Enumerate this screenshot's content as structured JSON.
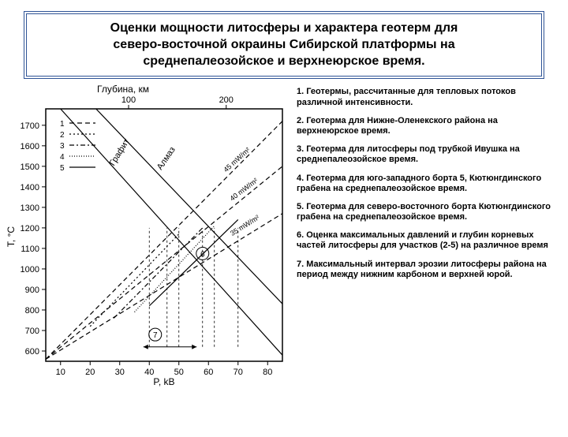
{
  "title": {
    "line1": "Оценки мощности литосферы и характера геотерм для",
    "line2": "северо-восточной окраины Сибирской платформы на",
    "line3": "среднепалеозойское и верхнеюрское время."
  },
  "descriptions": [
    "1. Геотермы, рассчитанные для тепловых потоков   различной    интенсивности.",
    "2. Геотерма для Нижне-Оленекского района на верхнеюрское время.",
    "3. Геотерма для литосферы под трубкой Ивушка на среднепалеозойское время.",
    "4. Геотерма для юго-западного борта 5, Кютюнгдинского грабена на среднепалеозойское время.",
    "5. Геотерма для северо-восточного борта Кютюнгдинского грабена на среднепалеозойское время.",
    "6. Оценка максимальных давлений и глубин корневых частей литосферы для участков (2-5) на различное время",
    "7. Максимальный интервал эрозии литосферы района на период между нижним карбоном и верхней юрой."
  ],
  "chart": {
    "type": "line",
    "top_axis_label": "Глубина, км",
    "y_axis_label": "T, °C",
    "x_axis_label": "P, kB",
    "xlim": [
      5,
      85
    ],
    "ylim": [
      550,
      1780
    ],
    "x_ticks": [
      10,
      20,
      30,
      40,
      50,
      60,
      70,
      80
    ],
    "y_ticks": [
      600,
      700,
      800,
      900,
      1000,
      1100,
      1200,
      1300,
      1400,
      1500,
      1600,
      1700
    ],
    "top_ticks": [
      100,
      200
    ],
    "background_color": "#ffffff",
    "axis_color": "#000000",
    "tick_fontsize": 11,
    "label_fontsize": 12,
    "legend_items": [
      "1",
      "2",
      "3",
      "4",
      "5"
    ],
    "legend_styles": [
      "dashed",
      "dotted",
      "dashdot",
      "dotted2",
      "solid"
    ],
    "graphite_line": {
      "p": [
        10,
        85
      ],
      "t": [
        1780,
        580
      ]
    },
    "diamond_line": {
      "p": [
        22,
        85
      ],
      "t": [
        1780,
        830
      ]
    },
    "graphite_label": "Графит",
    "diamond_label": "Алмаз",
    "heat_flows": {
      "45": {
        "p": [
          5,
          85
        ],
        "t": [
          560,
          1720
        ]
      },
      "40": {
        "p": [
          5,
          85
        ],
        "t": [
          560,
          1500
        ]
      },
      "35": {
        "p": [
          5,
          85
        ],
        "t": [
          560,
          1270
        ]
      }
    },
    "heat_flow_labels": [
      "45 mW/m²",
      "40 mW/m²",
      "35 mW/m²"
    ],
    "series": {
      "2": {
        "p": [
          20,
          50
        ],
        "t": [
          720,
          1170
        ],
        "style": "dotted"
      },
      "3": {
        "p": [
          28,
          58
        ],
        "t": [
          760,
          1200
        ],
        "style": "dashdot"
      },
      "4": {
        "p": [
          35,
          62
        ],
        "t": [
          790,
          1210
        ],
        "style": "dotted2"
      },
      "5": {
        "p": [
          40,
          70
        ],
        "t": [
          820,
          1240
        ],
        "style": "solid"
      }
    },
    "marker_6": {
      "p": 58,
      "t": 1075,
      "label": "6"
    },
    "marker_7": {
      "p": 42,
      "t": 680,
      "label": "7"
    },
    "arrow_range_7": {
      "p_from": 38,
      "p_to": 56,
      "t": 620
    },
    "vertical_dashes": [
      40,
      46,
      50,
      58,
      62,
      70
    ]
  }
}
